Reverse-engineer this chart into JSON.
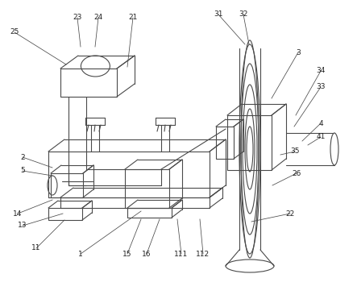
{
  "bg_color": "#ffffff",
  "line_color": "#4a4a4a",
  "line_width": 0.8,
  "label_fontsize": 6.5,
  "label_color": "#222222",
  "fig_w": 4.43,
  "fig_h": 3.71,
  "dpi": 100
}
